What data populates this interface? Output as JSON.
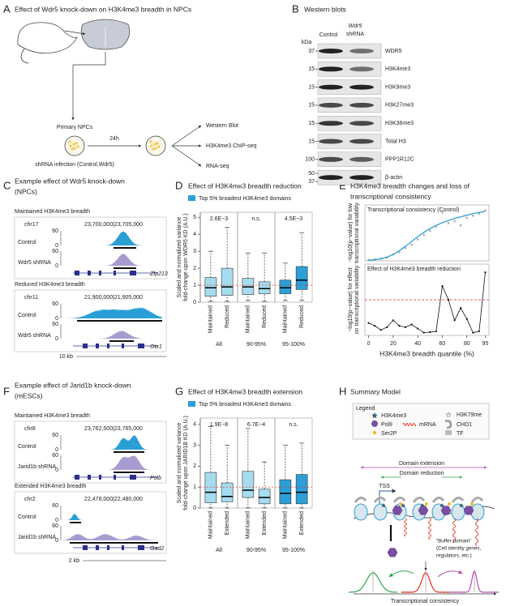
{
  "panel_a": {
    "letter": "A",
    "title": "Effect of Wdr5 knock-down on H3K4me3 breadth in NPCs",
    "primary": "Primary NPCs",
    "time": "24h",
    "infection": "shRNA infection (Control,Wdr5)",
    "outputs": [
      "Western Blot",
      "H3K4me3 ChIP-seq",
      "RNA-seq"
    ]
  },
  "panel_b": {
    "letter": "B",
    "title": "Western blots",
    "unit": "kDa",
    "lane_control": "Control",
    "lane_kd": [
      "Wdr5",
      "shRNA"
    ],
    "rows": [
      {
        "kda": [
          37
        ],
        "protein": "WDR5"
      },
      {
        "kda": [
          15
        ],
        "protein": "H3K4me3"
      },
      {
        "kda": [
          15
        ],
        "protein": "H3K9me3"
      },
      {
        "kda": [
          15
        ],
        "protein": "H3K27me3"
      },
      {
        "kda": [
          15
        ],
        "protein": "H3K36me3"
      },
      {
        "kda": [
          15
        ],
        "protein": "Total H3"
      },
      {
        "kda": [
          100
        ],
        "protein": "PPP1R12C"
      },
      {
        "kda": [
          50,
          37
        ],
        "protein": "β-actin"
      }
    ]
  },
  "panel_c": {
    "letter": "C",
    "title": [
      "Example effect of Wdr5 knock-down",
      "(NPCs)"
    ],
    "scale": "10 kb",
    "examples": [
      {
        "heading": "Maintained H3K4me3 breadth",
        "chrom": "chr17",
        "coords": "23,700,000|23,705,000",
        "tracks": [
          {
            "name": "Control",
            "max": 60,
            "min": 0
          },
          {
            "name": "Wdr5 shRNA",
            "max": 60,
            "min": 0
          }
        ],
        "gene": "Zfp213"
      },
      {
        "heading": "Reduced H3K4me3 breadth",
        "chrom": "chr11",
        "coords": "21,900,000|21,905,000",
        "tracks": [
          {
            "name": "Control",
            "max": 60,
            "min": 0
          },
          {
            "name": "Wdr5 shRNA",
            "max": 60,
            "min": 0
          }
        ],
        "gene": "Otx1"
      }
    ]
  },
  "panel_d": {
    "letter": "D",
    "chart_data": {
      "type": "box",
      "title": "Effect of H3K4me3 breadth reduction",
      "legend": "Top 5% broadest H3K4me3 domains",
      "legend_color": "#2b9fd9",
      "ylabel": [
        "Scaled and normalized variance",
        "fold-change upon WDR5 KD (A.U.)"
      ],
      "ylim": [
        0,
        5.3
      ],
      "yticks": [
        0,
        1,
        2,
        3,
        4,
        5
      ],
      "refline": 1,
      "refline_color": "#e0301e",
      "groups": [
        {
          "name": "All",
          "pvalue": "2.6E−3",
          "boxes": [
            {
              "name": "Maintained",
              "color": "#a6dcef",
              "stats": [
                0.05,
                0.35,
                0.85,
                1.45,
                3.0
              ]
            },
            {
              "name": "Reduced",
              "color": "#a6dcef",
              "stats": [
                0.05,
                0.4,
                0.9,
                2.0,
                4.4
              ]
            }
          ]
        },
        {
          "name": "90-95%",
          "pvalue": "n.s.",
          "boxes": [
            {
              "name": "Maintained",
              "color": "#a6dcef",
              "stats": [
                0.1,
                0.45,
                0.9,
                1.4,
                2.9
              ]
            },
            {
              "name": "Reduced",
              "color": "#a6dcef",
              "stats": [
                0.05,
                0.5,
                0.8,
                1.2,
                2.9
              ]
            }
          ]
        },
        {
          "name": "95-100%",
          "pvalue": "4.5E−3",
          "boxes": [
            {
              "name": "Maintained",
              "color": "#2b9fd9",
              "stats": [
                0.1,
                0.5,
                0.85,
                1.3,
                2.3
              ]
            },
            {
              "name": "Reduced",
              "color": "#2b9fd9",
              "stats": [
                0.1,
                0.75,
                1.3,
                2.1,
                4.1
              ]
            }
          ]
        }
      ]
    }
  },
  "panel_e": {
    "letter": "E",
    "chart_data": {
      "type": "line",
      "title": [
        "H3K4me3 breadth changes and loss of",
        "transcriptional consistency"
      ],
      "xlabel": "H3K4me3 breadth quantile (%)",
      "x": [
        0,
        5,
        10,
        15,
        20,
        25,
        30,
        35,
        40,
        45,
        50,
        55,
        60,
        65,
        70,
        75,
        80,
        85,
        90,
        95
      ],
      "xlim": [
        -3,
        98
      ],
      "xticks": [
        0,
        20,
        40,
        60,
        80,
        95
      ],
      "subplots": [
        {
          "title": "Transcriptional consistency (Control)",
          "ylabel": [
            "−log10(p−value) for low",
            "transcriptional variability"
          ],
          "ylim": [
            0,
            52
          ],
          "series": [
            {
              "mode": "points",
              "color": "#aaaaaa",
              "values": [
                1,
                1.5,
                2,
                3,
                6,
                8,
                12,
                15,
                20,
                24,
                28,
                32,
                45,
                35,
                37,
                33,
                40,
                42,
                44,
                47
              ]
            },
            {
              "mode": "line",
              "color": "#2b9fd9",
              "values": [
                0.5,
                1,
                2,
                3.5,
                6,
                9.5,
                13.5,
                18,
                22.5,
                26.5,
                30,
                33,
                35.5,
                37.5,
                39.5,
                41,
                42.5,
                44,
                45,
                46
              ]
            }
          ]
        },
        {
          "title": "Effect of H3K4me3 breadth reduction",
          "ylabel": [
            "−log10(p−value) for effect",
            "on transcriptional variability"
          ],
          "ylim": [
            0,
            2.6
          ],
          "threshold": 1.3,
          "threshold_color": "#e0301e",
          "series": [
            {
              "mode": "line",
              "markers": true,
              "color": "#111111",
              "values": [
                0.45,
                0.35,
                0.2,
                0.3,
                0.55,
                0.35,
                0.3,
                0.4,
                0.25,
                0.1,
                0.12,
                0.15,
                1.8,
                1.3,
                0.55,
                1.0,
                0.6,
                0.1,
                0.15,
                2.3
              ]
            }
          ]
        }
      ]
    }
  },
  "panel_f": {
    "letter": "F",
    "title": [
      "Example effect of Jarid1b knock-down",
      "(mESCs)"
    ],
    "scale": "2 kb",
    "examples": [
      {
        "heading": "Maintained H3K4me3 breadth",
        "chrom": "chr8",
        "coords": "23,762,500|23,765,000",
        "tracks": [
          {
            "name": "Control",
            "max": 60,
            "min": 0
          },
          {
            "name": "Jarid1b shRNA",
            "max": 60,
            "min": 0
          }
        ],
        "gene": "Polb"
      },
      {
        "heading": "Extended H3K4me3 breadth",
        "chrom": "chr2",
        "coords": "22,478,000|22,480,000",
        "tracks": [
          {
            "name": "Control",
            "max": 60,
            "min": 0
          },
          {
            "name": "Jarid1b shRNA",
            "max": 60,
            "min": 0
          }
        ],
        "gene": "Gad2"
      }
    ]
  },
  "panel_g": {
    "letter": "G",
    "chart_data": {
      "type": "box",
      "title": "Effect of H3K4me3 breadth extension",
      "legend": "Top 5% broadest H3K4me3 domains",
      "legend_color": "#2b9fd9",
      "ylabel": [
        "Scaled and normalized variance",
        "fold-change upon JARID1B KD (A.U.)"
      ],
      "ylim": [
        0,
        4.3
      ],
      "yticks": [
        0,
        1,
        2,
        3,
        4
      ],
      "refline": 1,
      "refline_color": "#e0301e",
      "groups": [
        {
          "name": "All",
          "pvalue": "1.9E−8",
          "boxes": [
            {
              "name": "Maintained",
              "color": "#a6dcef",
              "stats": [
                0,
                0.25,
                0.75,
                1.7,
                3.9
              ]
            },
            {
              "name": "Extended",
              "color": "#a6dcef",
              "stats": [
                0,
                0.3,
                0.55,
                1.2,
                3.0
              ]
            }
          ]
        },
        {
          "name": "90-95%",
          "pvalue": "6.7E−4",
          "boxes": [
            {
              "name": "Maintained",
              "color": "#a6dcef",
              "stats": [
                0,
                0.5,
                0.85,
                1.75,
                3.8
              ]
            },
            {
              "name": "Extended",
              "color": "#a6dcef",
              "stats": [
                0,
                0.2,
                0.5,
                0.9,
                2.2
              ]
            }
          ]
        },
        {
          "name": "95-100%",
          "pvalue": "n.s.",
          "boxes": [
            {
              "name": "Maintained",
              "color": "#2b9fd9",
              "stats": [
                0,
                0.2,
                0.7,
                1.35,
                3.0
              ]
            },
            {
              "name": "Extended",
              "color": "#2b9fd9",
              "stats": [
                0,
                0.2,
                0.75,
                1.6,
                3.1
              ]
            }
          ]
        }
      ]
    }
  },
  "panel_h": {
    "letter": "H",
    "title": "Summary Model",
    "legend_title": "Legend",
    "legend": [
      "H3K4me3",
      "PolII",
      "Ser2P",
      "mRNA",
      "H3K79me",
      "CHD1",
      "TF"
    ],
    "extension": "Domain extension",
    "reduction": "Domain reduction",
    "tss": "TSS",
    "buffer": [
      "“Buffer domain”",
      "(Cell identity genes,",
      "regulators, etc.)"
    ],
    "axis": "Transcriptional consistency"
  }
}
